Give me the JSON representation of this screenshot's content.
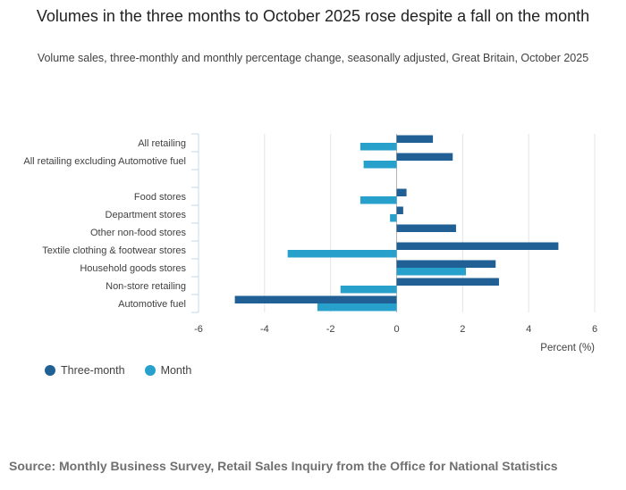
{
  "header": {
    "title": "Volumes in the three months to October 2025 rose despite a fall on the month",
    "subtitle": "Volume sales, three-monthly and monthly percentage change, seasonally adjusted, Great Britain, October 2025"
  },
  "footer": {
    "source": "Source: Monthly Business Survey, Retail Sales Inquiry from the Office for National Statistics"
  },
  "colors": {
    "three_month": "#206095",
    "month": "#27a0cc",
    "grid": "#e4e4e4",
    "axis": "#b3b3b3"
  },
  "chart_data": {
    "type": "bar",
    "orientation": "horizontal",
    "title": "Volumes in the three months to October 2025 rose despite a fall on the month",
    "subtitle": "Volume sales, three-monthly and monthly percentage change, seasonally adjusted, Great Britain, October 2025",
    "xlabel": "Percent (%)",
    "ylabel": "",
    "xlim": [
      -6,
      6
    ],
    "xticks": [
      -6,
      -4,
      -2,
      0,
      2,
      4,
      6
    ],
    "grid": true,
    "legend_position": "bottom-left",
    "categories": [
      "All retailing",
      "All retailing excluding Automotive fuel",
      "",
      "Food stores",
      "Department stores",
      "Other non-food stores",
      "Textile clothing & footwear stores",
      "Household goods stores",
      "Non-store retailing",
      "Automotive fuel"
    ],
    "series": [
      {
        "name": "Three-month",
        "values": [
          1.1,
          1.7,
          null,
          0.3,
          0.2,
          1.8,
          4.9,
          3.0,
          3.1,
          -4.9
        ]
      },
      {
        "name": "Month",
        "values": [
          -1.1,
          -1.0,
          null,
          -1.1,
          -0.2,
          null,
          -3.3,
          2.1,
          -1.7,
          -2.4
        ]
      }
    ]
  }
}
